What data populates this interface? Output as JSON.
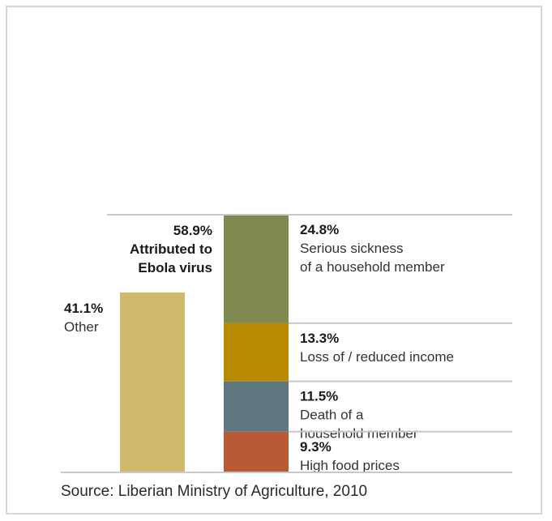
{
  "chart_data": {
    "type": "bar",
    "stacked": true,
    "axes": "none",
    "bars": [
      {
        "segments": [
          {
            "value": 41.1,
            "pct_label": "41.1%",
            "lines": [
              "Other"
            ],
            "color": "#d0b96b"
          }
        ]
      },
      {
        "total_label": [
          "58.9%",
          "Attributed to",
          "Ebola virus"
        ],
        "segments": [
          {
            "value": 9.3,
            "pct_label": "9.3%",
            "lines": [
              "High food prices"
            ],
            "color": "#b85a35"
          },
          {
            "value": 11.5,
            "pct_label": "11.5%",
            "lines": [
              "Death of a",
              "household member"
            ],
            "color": "#5f7880"
          },
          {
            "value": 13.3,
            "pct_label": "13.3%",
            "lines": [
              "Loss of / reduced income"
            ],
            "color": "#b88a00"
          },
          {
            "value": 24.8,
            "pct_label": "24.8%",
            "lines": [
              "Serious sickness",
              "of a household member"
            ],
            "color": "#7f8a52"
          }
        ]
      }
    ],
    "divider_color": "#c8c8c8"
  },
  "source": "Source: Liberian Ministry of Agriculture, 2010"
}
